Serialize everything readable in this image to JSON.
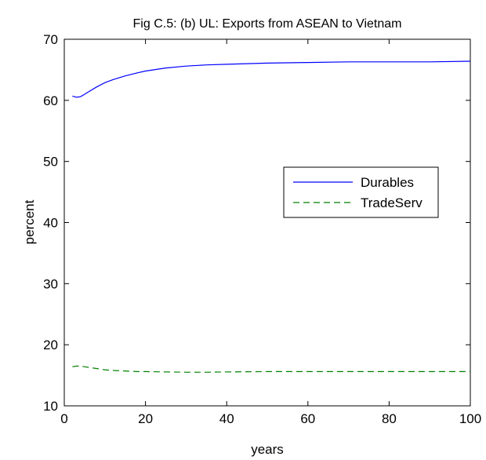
{
  "chart_data": {
    "type": "line",
    "title": "Fig C.5: (b) UL: Exports from ASEAN to Vietnam",
    "xlabel": "years",
    "ylabel": "percent",
    "xlim": [
      0,
      100
    ],
    "ylim": [
      10,
      70
    ],
    "xticks": [
      0,
      20,
      40,
      60,
      80,
      100
    ],
    "yticks": [
      10,
      20,
      30,
      40,
      50,
      60,
      70
    ],
    "grid": false,
    "legend_position": "right",
    "series": [
      {
        "name": "Durables",
        "color": "#0000ff",
        "style": "solid",
        "x": [
          2,
          3,
          4,
          5,
          6,
          8,
          10,
          12,
          15,
          18,
          20,
          25,
          30,
          35,
          40,
          50,
          60,
          70,
          80,
          90,
          100
        ],
        "values": [
          60.7,
          60.5,
          60.6,
          61.0,
          61.4,
          62.2,
          62.9,
          63.4,
          64.0,
          64.5,
          64.8,
          65.3,
          65.6,
          65.8,
          65.9,
          66.1,
          66.2,
          66.3,
          66.3,
          66.3,
          66.4
        ]
      },
      {
        "name": "TradeServ",
        "color": "#007f00",
        "style": "dashed",
        "x": [
          2,
          3,
          4,
          5,
          6,
          8,
          10,
          12,
          15,
          18,
          20,
          25,
          30,
          35,
          40,
          50,
          60,
          70,
          80,
          90,
          100
        ],
        "values": [
          16.4,
          16.5,
          16.5,
          16.4,
          16.3,
          16.1,
          15.9,
          15.8,
          15.7,
          15.6,
          15.6,
          15.55,
          15.5,
          15.5,
          15.55,
          15.6,
          15.6,
          15.6,
          15.6,
          15.6,
          15.6
        ]
      }
    ]
  }
}
